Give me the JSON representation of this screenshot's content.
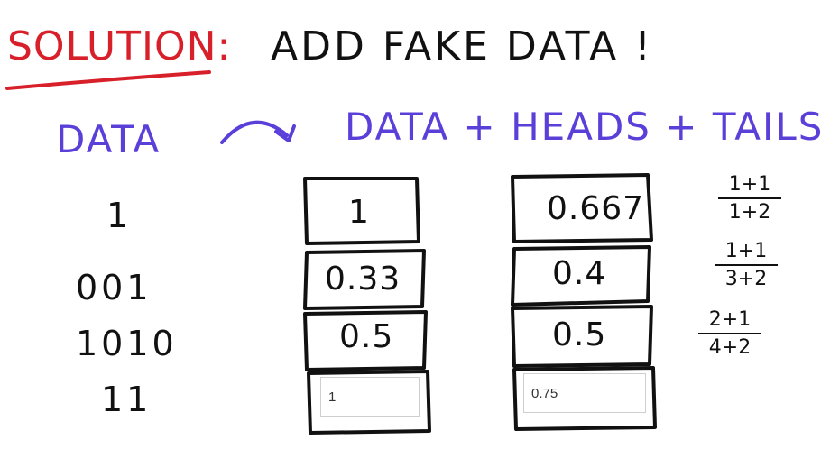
{
  "heading": {
    "solution": "SOLUTION:",
    "text": "ADD FAKE DATA !"
  },
  "labels": {
    "data": "DATA",
    "formula": "DATA + HEADS + TAILS"
  },
  "data_column": [
    "1",
    "001",
    "1010",
    "11"
  ],
  "mle_column": [
    "1",
    "0.33",
    "0.5"
  ],
  "laplace_column": [
    "0.667",
    "0.4",
    "0.5"
  ],
  "inputs": {
    "mle_answer": "1",
    "laplace_answer": "0.75"
  },
  "fractions": [
    {
      "num": "1+1",
      "den": "1+2"
    },
    {
      "num": "1+1",
      "den": "3+2"
    },
    {
      "num": "2+1",
      "den": "4+2"
    }
  ],
  "colors": {
    "heading_red": "#d8202a",
    "purple": "#5b3fd9",
    "ink": "#111111"
  }
}
